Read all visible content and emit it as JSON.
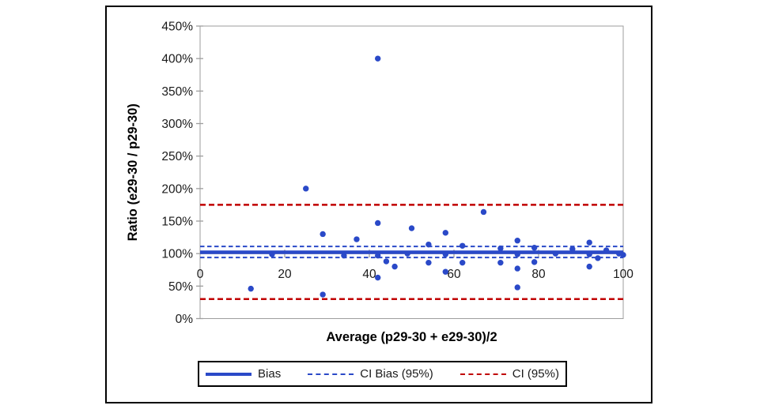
{
  "chart_data": {
    "type": "scatter",
    "title": "",
    "xlabel": "Average (p29-30 + e29-30)/2",
    "ylabel": "Ratio (e29-30 / p29-30)",
    "xlim": [
      0,
      100
    ],
    "ylim_pct": [
      0,
      450
    ],
    "x_ticks": [
      0,
      20,
      40,
      60,
      80,
      100
    ],
    "y_ticks_pct": [
      0,
      50,
      100,
      150,
      200,
      250,
      300,
      350,
      400,
      450
    ],
    "y_tick_suffix": "%",
    "grid": false,
    "x_axis_cross_pct": 100,
    "points_pct": [
      [
        12,
        46
      ],
      [
        17,
        99
      ],
      [
        25,
        200
      ],
      [
        29,
        130
      ],
      [
        29,
        37
      ],
      [
        34,
        97
      ],
      [
        37,
        122
      ],
      [
        42,
        400
      ],
      [
        42,
        147
      ],
      [
        42,
        97
      ],
      [
        42,
        63
      ],
      [
        44,
        88
      ],
      [
        46,
        80
      ],
      [
        49,
        100
      ],
      [
        50,
        139
      ],
      [
        54,
        114
      ],
      [
        54,
        86
      ],
      [
        58,
        132
      ],
      [
        58,
        99
      ],
      [
        58,
        72
      ],
      [
        62,
        112
      ],
      [
        62,
        86
      ],
      [
        67,
        164
      ],
      [
        71,
        108
      ],
      [
        71,
        86
      ],
      [
        75,
        120
      ],
      [
        75,
        99
      ],
      [
        75,
        77
      ],
      [
        75,
        48
      ],
      [
        79,
        109
      ],
      [
        79,
        87
      ],
      [
        84,
        100
      ],
      [
        88,
        107
      ],
      [
        92,
        117
      ],
      [
        92,
        99
      ],
      [
        92,
        80
      ],
      [
        94,
        93
      ],
      [
        96,
        105
      ],
      [
        99,
        100
      ],
      [
        100,
        98
      ]
    ],
    "reference_lines": {
      "bias_pct": 102,
      "ci_bias_low_pct": 94,
      "ci_bias_high_pct": 111,
      "ci_low_pct": 30,
      "ci_high_pct": 175
    },
    "legend": [
      {
        "label": "Bias",
        "style": "solid",
        "color": "#2a49c8"
      },
      {
        "label": "CI Bias (95%)",
        "style": "dashed",
        "color": "#2a49c8"
      },
      {
        "label": "CI (95%)",
        "style": "dashed",
        "color": "#c00000"
      }
    ],
    "legend_position": "bottom",
    "colors": {
      "point": "#2a49c8",
      "bias_line": "#2a49c8",
      "ci_bias_line": "#2a49c8",
      "ci_line": "#c00000",
      "axis": "#9e9e9e",
      "tick_text": "#1a1a1a",
      "title_text": "#000000",
      "frame_border": "#000000"
    }
  }
}
